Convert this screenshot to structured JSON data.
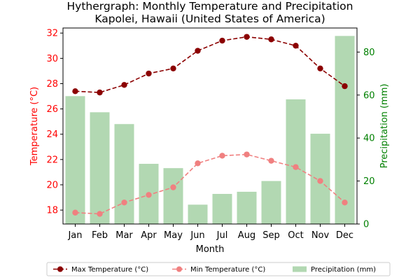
{
  "chart_data": {
    "type": "bar",
    "title_line1": "Hythergraph: Monthly Temperature and Precipitation",
    "title_line2": "Kapolei, Hawaii (United States of America)",
    "xlabel": "Month",
    "ylabel_left": "Temperature (°C)",
    "ylabel_right": "Precipitation (mm)",
    "categories": [
      "Jan",
      "Feb",
      "Mar",
      "Apr",
      "May",
      "Jun",
      "Jul",
      "Aug",
      "Sep",
      "Oct",
      "Nov",
      "Dec"
    ],
    "ylim_left": [
      16.9,
      32.4
    ],
    "yticks_left": [
      18,
      20,
      22,
      24,
      26,
      28,
      30,
      32
    ],
    "ylim_right": [
      0,
      91.2
    ],
    "yticks_right": [
      0,
      20,
      40,
      60,
      80
    ],
    "series": [
      {
        "name": "Max Temperature (°C)",
        "kind": "line",
        "axis": "left",
        "color": "#8b0000",
        "values": [
          27.4,
          27.3,
          27.9,
          28.8,
          29.2,
          30.6,
          31.4,
          31.7,
          31.5,
          31.0,
          29.2,
          27.8
        ]
      },
      {
        "name": "Min Temperature (°C)",
        "kind": "line",
        "axis": "left",
        "color": "#f08080",
        "values": [
          17.8,
          17.7,
          18.6,
          19.2,
          19.8,
          21.7,
          22.3,
          22.4,
          21.9,
          21.4,
          20.3,
          18.6
        ]
      },
      {
        "name": "Precipitation (mm)",
        "kind": "bar",
        "axis": "right",
        "color": "#b2d8b2",
        "values": [
          59.5,
          52.0,
          46.5,
          28.0,
          26.0,
          9.0,
          14.0,
          15.0,
          20.0,
          58.0,
          42.0,
          87.5
        ]
      }
    ],
    "legend_position": "bottom",
    "grid": false,
    "colors": {
      "left_axis": "#ff0000",
      "right_axis": "#008000"
    }
  }
}
